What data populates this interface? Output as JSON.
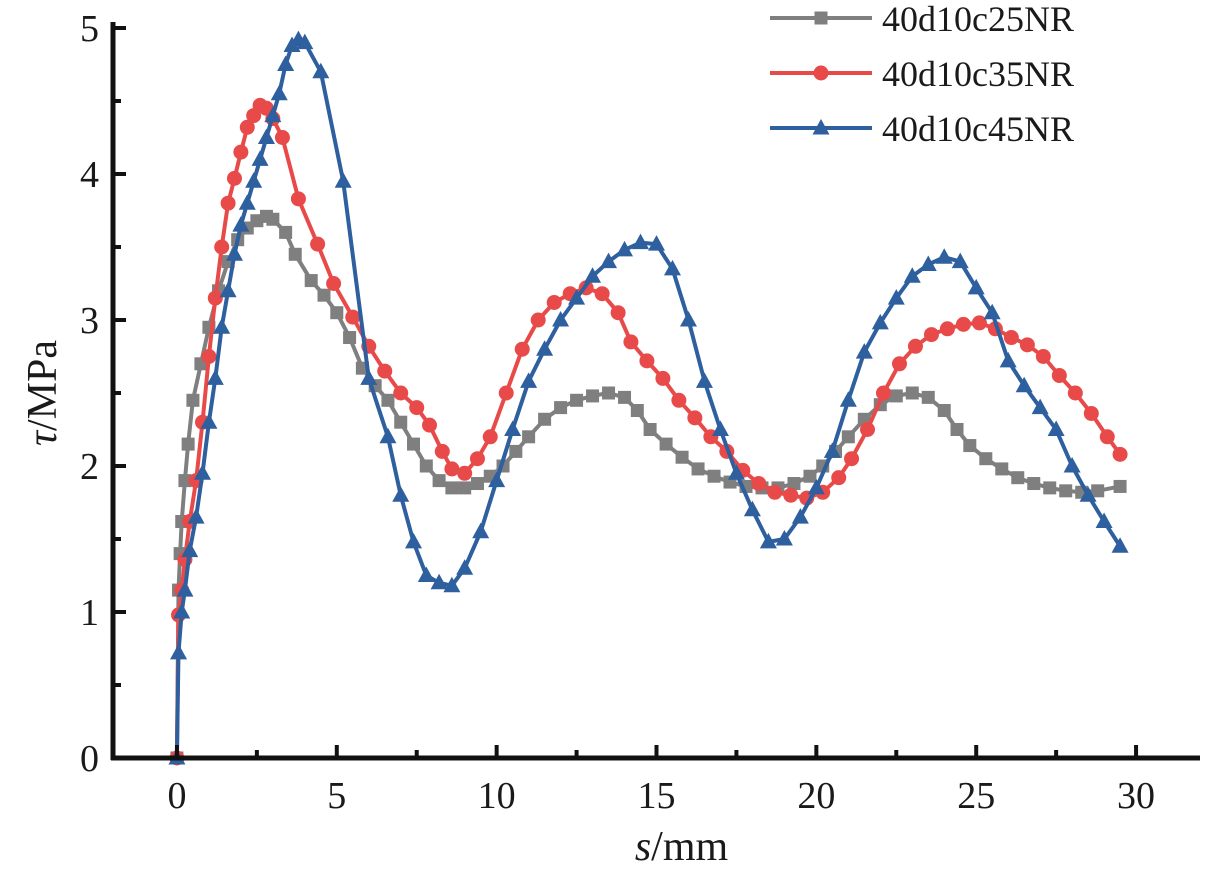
{
  "chart_data": {
    "type": "line",
    "xlabel_var": "s",
    "xlabel_unit": "/mm",
    "ylabel_var": "τ",
    "ylabel_unit": "/MPa",
    "xlim": [
      -2,
      32
    ],
    "ylim": [
      0,
      5
    ],
    "x_ticks": [
      0,
      5,
      10,
      15,
      20,
      25,
      30
    ],
    "y_ticks": [
      0,
      1,
      2,
      3,
      4,
      5
    ],
    "grid": false,
    "legend_position": "top-right",
    "series": [
      {
        "name": "40d10c25NR",
        "color": "#7f7f7f",
        "marker": "square",
        "points": [
          [
            0,
            0
          ],
          [
            0.05,
            1.15
          ],
          [
            0.1,
            1.4
          ],
          [
            0.15,
            1.62
          ],
          [
            0.25,
            1.9
          ],
          [
            0.35,
            2.15
          ],
          [
            0.5,
            2.45
          ],
          [
            0.75,
            2.7
          ],
          [
            1,
            2.95
          ],
          [
            1.3,
            3.2
          ],
          [
            1.6,
            3.4
          ],
          [
            1.9,
            3.55
          ],
          [
            2.2,
            3.63
          ],
          [
            2.5,
            3.68
          ],
          [
            2.8,
            3.71
          ],
          [
            3,
            3.69
          ],
          [
            3.4,
            3.6
          ],
          [
            3.7,
            3.45
          ],
          [
            4.2,
            3.27
          ],
          [
            4.6,
            3.17
          ],
          [
            5,
            3.05
          ],
          [
            5.4,
            2.88
          ],
          [
            5.8,
            2.67
          ],
          [
            6.2,
            2.55
          ],
          [
            6.6,
            2.45
          ],
          [
            7,
            2.3
          ],
          [
            7.4,
            2.15
          ],
          [
            7.8,
            2.0
          ],
          [
            8.2,
            1.9
          ],
          [
            8.6,
            1.85
          ],
          [
            9,
            1.85
          ],
          [
            9.4,
            1.88
          ],
          [
            9.8,
            1.93
          ],
          [
            10.2,
            2.0
          ],
          [
            10.6,
            2.1
          ],
          [
            11,
            2.2
          ],
          [
            11.5,
            2.32
          ],
          [
            12,
            2.4
          ],
          [
            12.5,
            2.45
          ],
          [
            13,
            2.48
          ],
          [
            13.5,
            2.5
          ],
          [
            14,
            2.47
          ],
          [
            14.4,
            2.38
          ],
          [
            14.8,
            2.25
          ],
          [
            15.3,
            2.15
          ],
          [
            15.8,
            2.06
          ],
          [
            16.3,
            1.98
          ],
          [
            16.8,
            1.93
          ],
          [
            17.3,
            1.89
          ],
          [
            17.8,
            1.86
          ],
          [
            18.3,
            1.85
          ],
          [
            18.8,
            1.85
          ],
          [
            19.3,
            1.88
          ],
          [
            19.8,
            1.93
          ],
          [
            20.2,
            2.0
          ],
          [
            20.6,
            2.1
          ],
          [
            21,
            2.2
          ],
          [
            21.5,
            2.32
          ],
          [
            22,
            2.42
          ],
          [
            22.5,
            2.48
          ],
          [
            23,
            2.5
          ],
          [
            23.5,
            2.47
          ],
          [
            24,
            2.38
          ],
          [
            24.4,
            2.25
          ],
          [
            24.8,
            2.14
          ],
          [
            25.3,
            2.05
          ],
          [
            25.8,
            1.98
          ],
          [
            26.3,
            1.92
          ],
          [
            26.8,
            1.88
          ],
          [
            27.3,
            1.85
          ],
          [
            27.8,
            1.83
          ],
          [
            28.3,
            1.82
          ],
          [
            28.8,
            1.83
          ],
          [
            29.5,
            1.86
          ]
        ]
      },
      {
        "name": "40d10c35NR",
        "color": "#e84a4a",
        "marker": "circle",
        "points": [
          [
            0,
            0
          ],
          [
            0.05,
            0.98
          ],
          [
            0.15,
            1.15
          ],
          [
            0.25,
            1.36
          ],
          [
            0.4,
            1.62
          ],
          [
            0.6,
            1.9
          ],
          [
            0.8,
            2.3
          ],
          [
            1,
            2.75
          ],
          [
            1.2,
            3.15
          ],
          [
            1.4,
            3.5
          ],
          [
            1.6,
            3.8
          ],
          [
            1.8,
            3.97
          ],
          [
            2,
            4.15
          ],
          [
            2.2,
            4.32
          ],
          [
            2.4,
            4.4
          ],
          [
            2.6,
            4.47
          ],
          [
            2.8,
            4.45
          ],
          [
            3,
            4.38
          ],
          [
            3.3,
            4.25
          ],
          [
            3.8,
            3.83
          ],
          [
            4.4,
            3.52
          ],
          [
            4.9,
            3.25
          ],
          [
            5.5,
            3.02
          ],
          [
            6,
            2.82
          ],
          [
            6.5,
            2.65
          ],
          [
            7,
            2.5
          ],
          [
            7.5,
            2.4
          ],
          [
            7.9,
            2.28
          ],
          [
            8.3,
            2.1
          ],
          [
            8.6,
            1.98
          ],
          [
            9,
            1.95
          ],
          [
            9.4,
            2.05
          ],
          [
            9.8,
            2.2
          ],
          [
            10.3,
            2.5
          ],
          [
            10.8,
            2.8
          ],
          [
            11.3,
            3.0
          ],
          [
            11.8,
            3.12
          ],
          [
            12.3,
            3.18
          ],
          [
            12.8,
            3.22
          ],
          [
            13.3,
            3.18
          ],
          [
            13.8,
            3.05
          ],
          [
            14.2,
            2.85
          ],
          [
            14.7,
            2.72
          ],
          [
            15.2,
            2.6
          ],
          [
            15.7,
            2.45
          ],
          [
            16.2,
            2.33
          ],
          [
            16.7,
            2.2
          ],
          [
            17.2,
            2.1
          ],
          [
            17.7,
            1.97
          ],
          [
            18.2,
            1.88
          ],
          [
            18.7,
            1.82
          ],
          [
            19.2,
            1.8
          ],
          [
            19.7,
            1.78
          ],
          [
            20.2,
            1.82
          ],
          [
            20.7,
            1.92
          ],
          [
            21.1,
            2.05
          ],
          [
            21.6,
            2.25
          ],
          [
            22.1,
            2.5
          ],
          [
            22.6,
            2.7
          ],
          [
            23.1,
            2.82
          ],
          [
            23.6,
            2.9
          ],
          [
            24.1,
            2.94
          ],
          [
            24.6,
            2.97
          ],
          [
            25.1,
            2.98
          ],
          [
            25.6,
            2.94
          ],
          [
            26.1,
            2.88
          ],
          [
            26.6,
            2.83
          ],
          [
            27.1,
            2.75
          ],
          [
            27.6,
            2.62
          ],
          [
            28.1,
            2.5
          ],
          [
            28.6,
            2.36
          ],
          [
            29.1,
            2.2
          ],
          [
            29.5,
            2.08
          ]
        ]
      },
      {
        "name": "40d10c45NR",
        "color": "#2e5f9e",
        "marker": "triangle",
        "points": [
          [
            0,
            0
          ],
          [
            0.05,
            0.72
          ],
          [
            0.15,
            1.0
          ],
          [
            0.25,
            1.15
          ],
          [
            0.4,
            1.42
          ],
          [
            0.6,
            1.65
          ],
          [
            0.8,
            1.95
          ],
          [
            1,
            2.3
          ],
          [
            1.2,
            2.6
          ],
          [
            1.4,
            2.95
          ],
          [
            1.6,
            3.2
          ],
          [
            1.8,
            3.45
          ],
          [
            2,
            3.65
          ],
          [
            2.2,
            3.8
          ],
          [
            2.4,
            3.95
          ],
          [
            2.6,
            4.1
          ],
          [
            2.8,
            4.25
          ],
          [
            3,
            4.4
          ],
          [
            3.2,
            4.55
          ],
          [
            3.4,
            4.75
          ],
          [
            3.6,
            4.88
          ],
          [
            3.8,
            4.92
          ],
          [
            4,
            4.9
          ],
          [
            4.5,
            4.7
          ],
          [
            5.2,
            3.95
          ],
          [
            6,
            2.6
          ],
          [
            6.6,
            2.2
          ],
          [
            7,
            1.8
          ],
          [
            7.4,
            1.48
          ],
          [
            7.8,
            1.25
          ],
          [
            8.2,
            1.2
          ],
          [
            8.6,
            1.18
          ],
          [
            9,
            1.3
          ],
          [
            9.5,
            1.55
          ],
          [
            10,
            1.9
          ],
          [
            10.5,
            2.25
          ],
          [
            11,
            2.58
          ],
          [
            11.5,
            2.8
          ],
          [
            12,
            3.0
          ],
          [
            12.5,
            3.15
          ],
          [
            13,
            3.3
          ],
          [
            13.5,
            3.4
          ],
          [
            14,
            3.48
          ],
          [
            14.5,
            3.53
          ],
          [
            15,
            3.52
          ],
          [
            15.5,
            3.35
          ],
          [
            16,
            3.0
          ],
          [
            16.5,
            2.58
          ],
          [
            17,
            2.25
          ],
          [
            17.5,
            1.95
          ],
          [
            18,
            1.7
          ],
          [
            18.5,
            1.48
          ],
          [
            19,
            1.5
          ],
          [
            19.5,
            1.65
          ],
          [
            20,
            1.85
          ],
          [
            20.5,
            2.1
          ],
          [
            21,
            2.45
          ],
          [
            21.5,
            2.78
          ],
          [
            22,
            2.98
          ],
          [
            22.5,
            3.15
          ],
          [
            23,
            3.3
          ],
          [
            23.5,
            3.38
          ],
          [
            24,
            3.43
          ],
          [
            24.5,
            3.4
          ],
          [
            25,
            3.22
          ],
          [
            25.5,
            3.05
          ],
          [
            26,
            2.72
          ],
          [
            26.5,
            2.55
          ],
          [
            27,
            2.4
          ],
          [
            27.5,
            2.25
          ],
          [
            28,
            2.0
          ],
          [
            28.5,
            1.8
          ],
          [
            29,
            1.62
          ],
          [
            29.5,
            1.45
          ]
        ]
      }
    ]
  }
}
